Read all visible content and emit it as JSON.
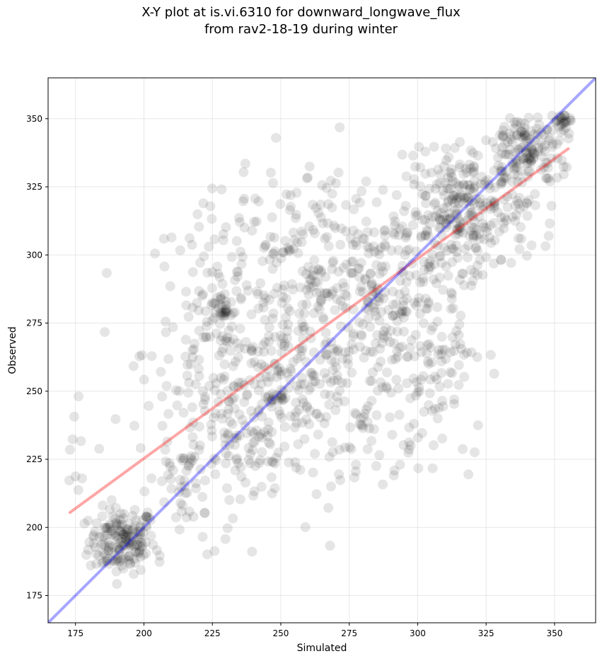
{
  "chart_data": {
    "type": "scatter",
    "title_line1": "X-Y plot at is.vi.6310 for downward_longwave_flux",
    "title_line2": "from rav2-18-19 during winter",
    "xlabel": "Simulated",
    "ylabel": "Observed",
    "xlim": [
      165,
      365
    ],
    "ylim": [
      165,
      365
    ],
    "xticks": [
      175,
      200,
      225,
      250,
      275,
      300,
      325,
      350
    ],
    "yticks": [
      175,
      200,
      225,
      250,
      275,
      300,
      325,
      350
    ],
    "grid": true,
    "point_color": "#000000",
    "point_alpha": 0.1,
    "one_to_one_line": {
      "color": "#0000ff",
      "x": [
        165,
        365
      ],
      "y": [
        165,
        365
      ]
    },
    "fit_line": {
      "color": "#ff0000",
      "x": [
        173,
        355
      ],
      "y": [
        205.5,
        339
      ]
    },
    "clusters": [
      {
        "cx": 192,
        "cy": 195,
        "sx": 6,
        "sy": 6,
        "n": 170
      },
      {
        "cx": 215,
        "cy": 215,
        "sx": 9,
        "sy": 12,
        "n": 60
      },
      {
        "cx": 232,
        "cy": 265,
        "sx": 16,
        "sy": 28,
        "n": 260
      },
      {
        "cx": 262,
        "cy": 280,
        "sx": 16,
        "sy": 28,
        "n": 250
      },
      {
        "cx": 290,
        "cy": 285,
        "sx": 13,
        "sy": 22,
        "n": 220
      },
      {
        "cx": 318,
        "cy": 315,
        "sx": 11,
        "sy": 11,
        "n": 260
      },
      {
        "cx": 340,
        "cy": 338,
        "sx": 8,
        "sy": 8,
        "n": 170
      },
      {
        "cx": 245,
        "cy": 245,
        "sx": 14,
        "sy": 14,
        "n": 120
      },
      {
        "cx": 285,
        "cy": 235,
        "sx": 12,
        "sy": 15,
        "n": 60
      },
      {
        "cx": 175,
        "cy": 228,
        "sx": 2,
        "sy": 12,
        "n": 10
      },
      {
        "cx": 310,
        "cy": 265,
        "sx": 8,
        "sy": 20,
        "n": 50
      },
      {
        "cx": 228,
        "cy": 280,
        "sx": 1.5,
        "sy": 3,
        "n": 25
      },
      {
        "cx": 353,
        "cy": 350,
        "sx": 1.5,
        "sy": 2,
        "n": 25
      }
    ]
  }
}
